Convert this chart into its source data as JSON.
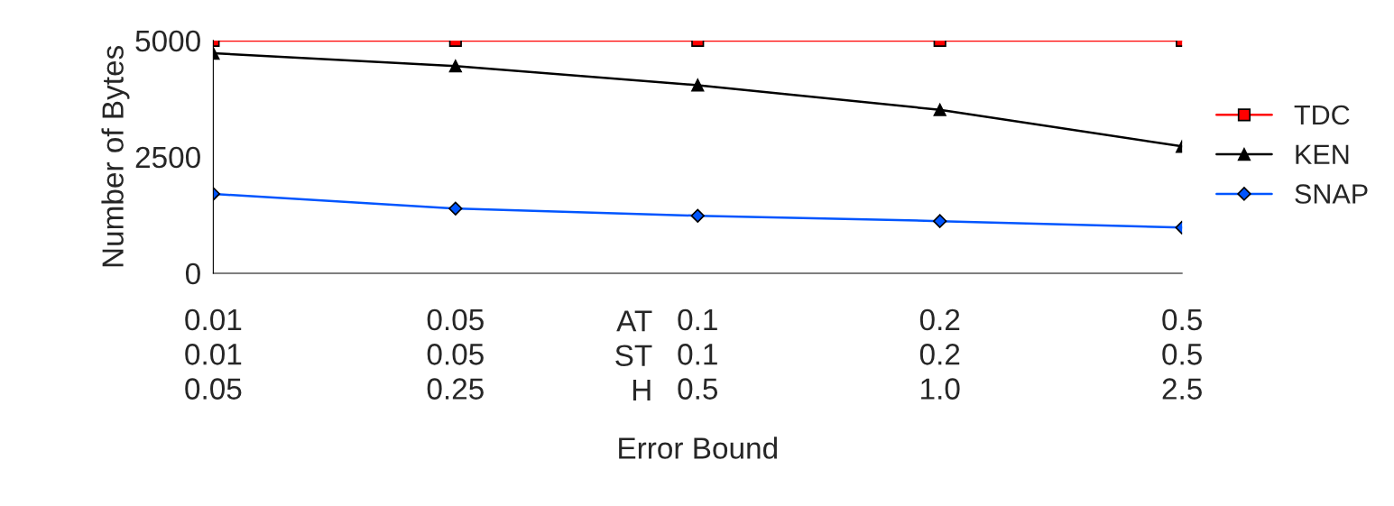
{
  "chart_data": {
    "type": "line",
    "xlabel": "Error Bound",
    "ylabel": "Number of Bytes",
    "categories": [
      "0.01\n0.01\n0.05",
      "0.05\n0.05\n0.25",
      "0.1\n0.1\n0.5",
      "0.2\n0.2\n1.0",
      "0.5\n0.5\n2.5"
    ],
    "series": [
      {
        "name": "TDC",
        "color": "#ff0000",
        "marker": "square",
        "values": [
          5000,
          5000,
          5000,
          5000,
          5000
        ]
      },
      {
        "name": "KEN",
        "color": "#000000",
        "marker": "triangle",
        "values": [
          4725,
          4450,
          4040,
          3510,
          2725
        ]
      },
      {
        "name": "SNAP",
        "color": "#0055ff",
        "marker": "diamond",
        "values": [
          1705,
          1390,
          1235,
          1120,
          980
        ]
      }
    ],
    "ylim": [
      0,
      5000
    ],
    "yticks": [
      0,
      2500,
      5000
    ],
    "grid": false,
    "legend": "right",
    "annotations": [
      "AT\nST\nH"
    ]
  }
}
